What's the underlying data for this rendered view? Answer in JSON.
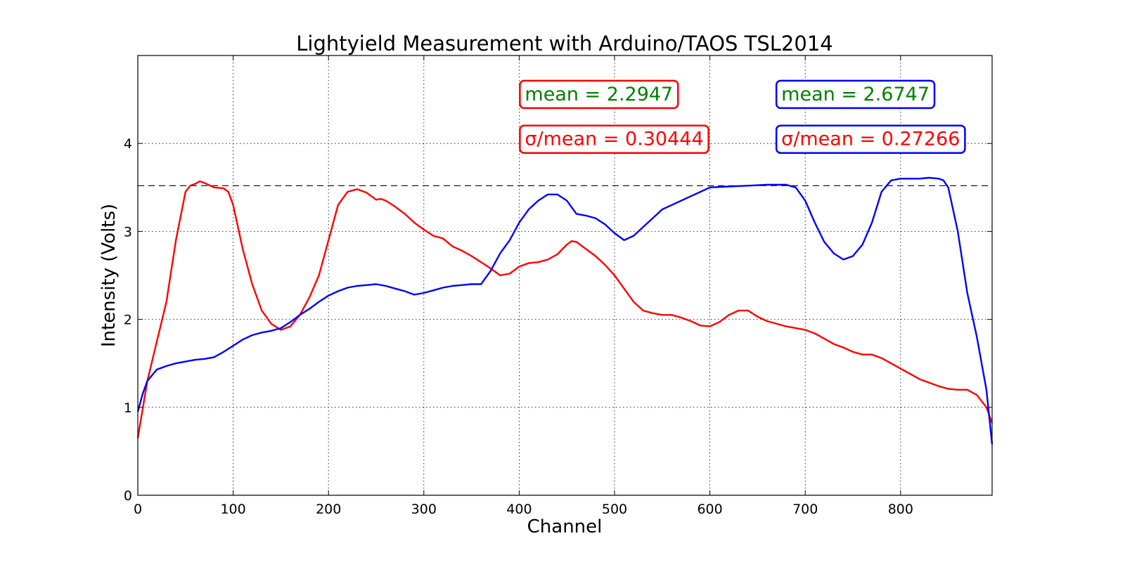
{
  "chart_data": {
    "type": "line",
    "title": "Lightyield Measurement with Arduino/TAOS TSL2014",
    "xlabel": "Channel",
    "ylabel": "Intensity (Volts)",
    "xlim": [
      0,
      896
    ],
    "ylim": [
      0,
      5
    ],
    "xticks": [
      0,
      100,
      200,
      300,
      400,
      500,
      600,
      700,
      800
    ],
    "yticks": [
      0,
      1,
      2,
      3,
      4
    ],
    "grid": true,
    "reference_line": {
      "y": 3.52,
      "style": "dashed",
      "color": "#000000"
    },
    "series": [
      {
        "color": "#ff0000",
        "x": [
          0,
          10,
          20,
          30,
          40,
          50,
          55,
          60,
          65,
          70,
          80,
          90,
          95,
          100,
          110,
          120,
          130,
          140,
          150,
          160,
          170,
          180,
          190,
          200,
          210,
          220,
          230,
          240,
          250,
          255,
          260,
          270,
          280,
          290,
          300,
          310,
          320,
          330,
          340,
          350,
          360,
          370,
          380,
          390,
          400,
          410,
          420,
          430,
          440,
          450,
          455,
          460,
          470,
          480,
          490,
          500,
          510,
          520,
          530,
          540,
          550,
          560,
          570,
          580,
          590,
          600,
          610,
          620,
          630,
          640,
          650,
          660,
          670,
          680,
          690,
          700,
          710,
          720,
          730,
          740,
          750,
          760,
          770,
          780,
          790,
          800,
          810,
          820,
          830,
          840,
          850,
          860,
          870,
          880,
          890,
          896
        ],
        "y": [
          0.65,
          1.3,
          1.75,
          2.2,
          2.9,
          3.45,
          3.52,
          3.54,
          3.57,
          3.55,
          3.5,
          3.49,
          3.45,
          3.3,
          2.8,
          2.4,
          2.1,
          1.95,
          1.88,
          1.92,
          2.05,
          2.25,
          2.5,
          2.9,
          3.3,
          3.45,
          3.48,
          3.44,
          3.36,
          3.37,
          3.35,
          3.28,
          3.2,
          3.1,
          3.02,
          2.95,
          2.92,
          2.83,
          2.78,
          2.72,
          2.65,
          2.58,
          2.5,
          2.52,
          2.6,
          2.64,
          2.65,
          2.68,
          2.74,
          2.85,
          2.89,
          2.88,
          2.8,
          2.72,
          2.62,
          2.5,
          2.35,
          2.2,
          2.1,
          2.07,
          2.05,
          2.05,
          2.02,
          1.98,
          1.93,
          1.92,
          1.97,
          2.05,
          2.1,
          2.1,
          2.03,
          1.98,
          1.95,
          1.92,
          1.9,
          1.88,
          1.84,
          1.78,
          1.72,
          1.68,
          1.63,
          1.6,
          1.6,
          1.56,
          1.5,
          1.44,
          1.38,
          1.32,
          1.28,
          1.24,
          1.21,
          1.2,
          1.2,
          1.14,
          1.0,
          0.82
        ]
      },
      {
        "color": "#0000ff",
        "x": [
          0,
          5,
          10,
          20,
          30,
          40,
          50,
          60,
          70,
          80,
          90,
          100,
          110,
          120,
          130,
          140,
          150,
          160,
          170,
          180,
          190,
          200,
          210,
          220,
          230,
          240,
          250,
          260,
          270,
          280,
          290,
          300,
          310,
          320,
          330,
          340,
          350,
          360,
          370,
          380,
          390,
          400,
          410,
          420,
          430,
          440,
          450,
          460,
          470,
          480,
          490,
          500,
          510,
          520,
          530,
          540,
          550,
          560,
          570,
          580,
          590,
          600,
          620,
          640,
          660,
          680,
          690,
          700,
          710,
          720,
          730,
          740,
          750,
          760,
          770,
          780,
          790,
          800,
          810,
          820,
          830,
          840,
          845,
          850,
          860,
          870,
          880,
          890,
          896
        ],
        "y": [
          0.95,
          1.15,
          1.3,
          1.43,
          1.47,
          1.5,
          1.52,
          1.54,
          1.55,
          1.57,
          1.63,
          1.7,
          1.77,
          1.82,
          1.85,
          1.87,
          1.9,
          1.97,
          2.05,
          2.12,
          2.2,
          2.27,
          2.32,
          2.36,
          2.38,
          2.39,
          2.4,
          2.38,
          2.35,
          2.32,
          2.28,
          2.3,
          2.33,
          2.36,
          2.38,
          2.39,
          2.4,
          2.4,
          2.55,
          2.75,
          2.9,
          3.1,
          3.25,
          3.35,
          3.42,
          3.42,
          3.35,
          3.2,
          3.18,
          3.15,
          3.08,
          2.98,
          2.9,
          2.95,
          3.05,
          3.15,
          3.25,
          3.3,
          3.35,
          3.4,
          3.45,
          3.5,
          3.51,
          3.52,
          3.53,
          3.53,
          3.5,
          3.35,
          3.1,
          2.88,
          2.75,
          2.68,
          2.72,
          2.85,
          3.1,
          3.45,
          3.58,
          3.6,
          3.6,
          3.6,
          3.61,
          3.6,
          3.58,
          3.5,
          3.0,
          2.3,
          1.8,
          1.2,
          0.58
        ]
      }
    ],
    "annotations": [
      {
        "text": "mean = 2.2947",
        "color": "#008000",
        "border": "#ff0000",
        "x": 400,
        "y": 4.57
      },
      {
        "text": "σ/mean = 0.30444",
        "color": "#ff0000",
        "border": "#ff0000",
        "x": 400,
        "y": 4.06
      },
      {
        "text": "mean = 2.6747",
        "color": "#008000",
        "border": "#0000ff",
        "x": 669,
        "y": 4.57
      },
      {
        "text": "σ/mean = 0.27266",
        "color": "#ff0000",
        "border": "#0000ff",
        "x": 669,
        "y": 4.06
      }
    ]
  }
}
